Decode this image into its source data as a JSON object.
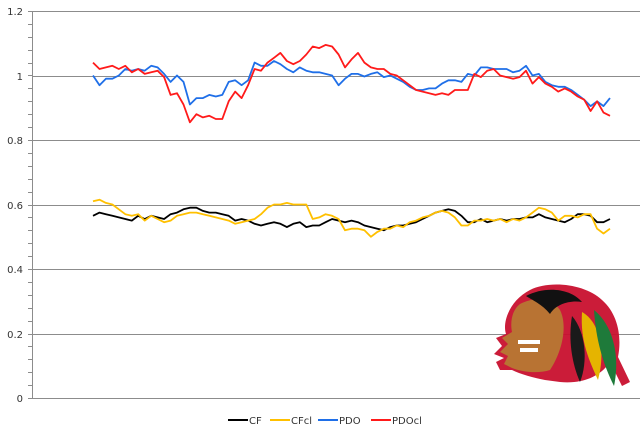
{
  "chart_data": {
    "type": "line",
    "title": "",
    "xlabel": "",
    "ylabel": "",
    "ylim": [
      0,
      1.2
    ],
    "yticks": [
      "0",
      "0.2",
      "0.4",
      "0.6",
      "0.8",
      "1",
      "1.2"
    ],
    "ytick_values": [
      0,
      0.2,
      0.4,
      0.6,
      0.8,
      1.0,
      1.2
    ],
    "grid": true,
    "legend_position": "bottom",
    "series": [
      {
        "name": "CF",
        "color": "#000000",
        "values": [
          0.565,
          0.575,
          0.57,
          0.565,
          0.56,
          0.555,
          0.55,
          0.565,
          0.555,
          0.565,
          0.56,
          0.555,
          0.57,
          0.575,
          0.585,
          0.59,
          0.59,
          0.58,
          0.575,
          0.575,
          0.57,
          0.565,
          0.55,
          0.555,
          0.55,
          0.54,
          0.535,
          0.54,
          0.545,
          0.54,
          0.53,
          0.54,
          0.545,
          0.53,
          0.535,
          0.535,
          0.545,
          0.555,
          0.55,
          0.545,
          0.55,
          0.545,
          0.535,
          0.53,
          0.525,
          0.52,
          0.53,
          0.535,
          0.535,
          0.54,
          0.545,
          0.555,
          0.565,
          0.575,
          0.58,
          0.585,
          0.58,
          0.565,
          0.545,
          0.545,
          0.555,
          0.545,
          0.55,
          0.555,
          0.55,
          0.555,
          0.555,
          0.56,
          0.56,
          0.57,
          0.56,
          0.555,
          0.55,
          0.545,
          0.555,
          0.57,
          0.57,
          0.565,
          0.545,
          0.545,
          0.555
        ]
      },
      {
        "name": "CFcl",
        "color": "#FFC000",
        "values": [
          0.61,
          0.615,
          0.605,
          0.6,
          0.585,
          0.57,
          0.565,
          0.57,
          0.55,
          0.565,
          0.555,
          0.545,
          0.55,
          0.565,
          0.57,
          0.575,
          0.575,
          0.57,
          0.565,
          0.56,
          0.555,
          0.55,
          0.54,
          0.545,
          0.55,
          0.555,
          0.57,
          0.59,
          0.6,
          0.6,
          0.605,
          0.6,
          0.6,
          0.6,
          0.555,
          0.56,
          0.57,
          0.565,
          0.555,
          0.52,
          0.525,
          0.525,
          0.52,
          0.5,
          0.515,
          0.525,
          0.525,
          0.535,
          0.53,
          0.545,
          0.55,
          0.56,
          0.565,
          0.575,
          0.58,
          0.575,
          0.56,
          0.535,
          0.535,
          0.55,
          0.55,
          0.555,
          0.55,
          0.555,
          0.545,
          0.555,
          0.55,
          0.56,
          0.575,
          0.59,
          0.585,
          0.575,
          0.55,
          0.565,
          0.565,
          0.56,
          0.57,
          0.57,
          0.525,
          0.51,
          0.525
        ]
      },
      {
        "name": "PDO",
        "color": "#1F6FE8",
        "values": [
          1.0,
          0.97,
          0.99,
          0.99,
          1.0,
          1.02,
          1.015,
          1.02,
          1.015,
          1.03,
          1.025,
          1.005,
          0.98,
          1.0,
          0.98,
          0.91,
          0.93,
          0.93,
          0.94,
          0.935,
          0.94,
          0.98,
          0.985,
          0.97,
          0.985,
          1.04,
          1.03,
          1.03,
          1.045,
          1.035,
          1.02,
          1.01,
          1.025,
          1.015,
          1.01,
          1.01,
          1.005,
          1.0,
          0.97,
          0.99,
          1.005,
          1.005,
          0.997,
          1.005,
          1.01,
          0.995,
          1.0,
          0.99,
          0.98,
          0.965,
          0.955,
          0.955,
          0.96,
          0.96,
          0.975,
          0.985,
          0.985,
          0.98,
          1.005,
          1.0,
          1.025,
          1.025,
          1.02,
          1.02,
          1.02,
          1.01,
          1.015,
          1.03,
          1.0,
          1.005,
          0.98,
          0.97,
          0.965,
          0.965,
          0.955,
          0.94,
          0.925,
          0.905,
          0.92,
          0.905,
          0.93
        ]
      },
      {
        "name": "PDOcl",
        "color": "#FF1A1A",
        "values": [
          1.04,
          1.02,
          1.025,
          1.03,
          1.02,
          1.03,
          1.01,
          1.02,
          1.005,
          1.01,
          1.015,
          0.995,
          0.94,
          0.945,
          0.91,
          0.855,
          0.88,
          0.87,
          0.875,
          0.865,
          0.865,
          0.92,
          0.95,
          0.93,
          0.97,
          1.02,
          1.015,
          1.04,
          1.055,
          1.07,
          1.045,
          1.035,
          1.045,
          1.065,
          1.09,
          1.085,
          1.095,
          1.09,
          1.065,
          1.025,
          1.05,
          1.07,
          1.04,
          1.025,
          1.02,
          1.02,
          1.005,
          1.0,
          0.985,
          0.97,
          0.955,
          0.95,
          0.945,
          0.94,
          0.945,
          0.94,
          0.955,
          0.955,
          0.955,
          1.005,
          0.995,
          1.015,
          1.02,
          1.0,
          0.995,
          0.99,
          0.995,
          1.015,
          0.975,
          0.995,
          0.975,
          0.965,
          0.95,
          0.96,
          0.95,
          0.935,
          0.925,
          0.89,
          0.92,
          0.885,
          0.875
        ]
      }
    ]
  },
  "logo": {
    "name": "Chicago Blackhawks logo"
  }
}
